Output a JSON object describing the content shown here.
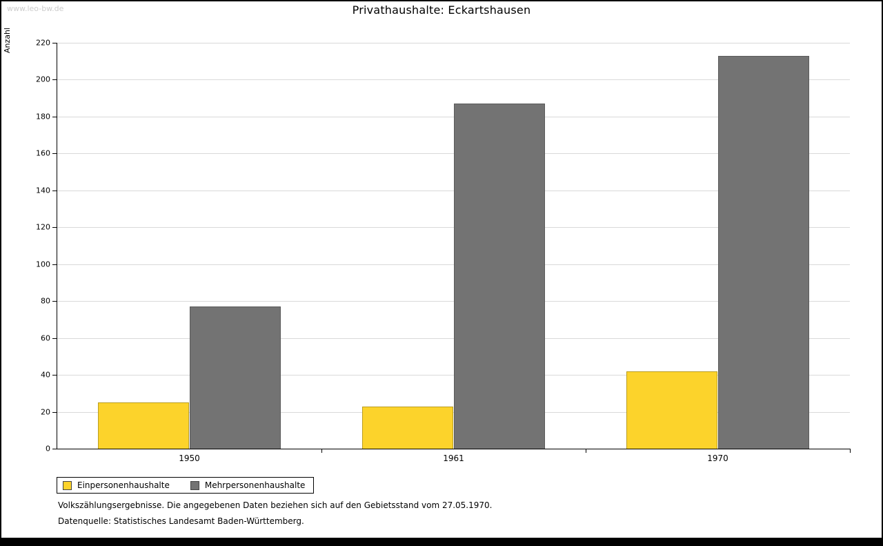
{
  "watermark": "www.leo-bw.de",
  "title": "Privathaushalte: Eckartshausen",
  "chart_data": {
    "type": "bar",
    "title": "Privathaushalte: Eckartshausen",
    "categories": [
      "1950",
      "1961",
      "1970"
    ],
    "series": [
      {
        "name": "Einpersonenhaushalte",
        "color": "#fcd32b",
        "values": [
          25,
          23,
          42
        ]
      },
      {
        "name": "Mehrpersonenhaushalte",
        "color": "#737373",
        "values": [
          77,
          187,
          213
        ]
      }
    ],
    "xlabel": "",
    "ylabel": "Anzahl",
    "ylim": [
      0,
      220
    ],
    "ytick_step": 20,
    "grid": true,
    "legend_position": "bottom-left"
  },
  "footnotes": [
    "Volkszählungsergebnisse. Die angegebenen Daten beziehen sich auf den Gebietsstand vom 27.05.1970.",
    "Datenquelle: Statistisches Landesamt Baden-Württemberg."
  ]
}
